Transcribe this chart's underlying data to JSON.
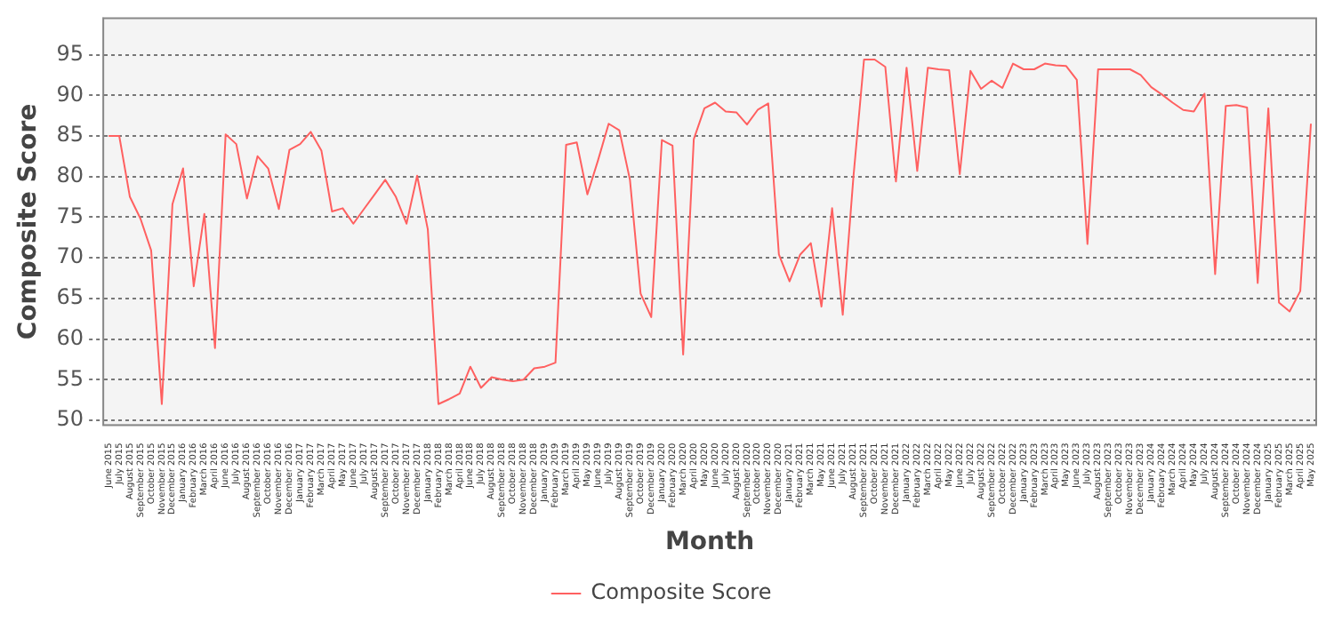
{
  "chart_data": {
    "type": "line",
    "xlabel": "Month",
    "ylabel": "Composite Score",
    "categories": [
      "June 2015",
      "July 2015",
      "August 2015",
      "September 2015",
      "October 2015",
      "November 2015",
      "December 2015",
      "January 2016",
      "February 2016",
      "March 2016",
      "April 2016",
      "June 2016",
      "July 2016",
      "August 2016",
      "September 2016",
      "October 2016",
      "November 2016",
      "December 2016",
      "January 2017",
      "February 2017",
      "March 2017",
      "April 2017",
      "May 2017",
      "June 2017",
      "July 2017",
      "August 2017",
      "September 2017",
      "October 2017",
      "November 2017",
      "December 2017",
      "January 2018",
      "February 2018",
      "March 2018",
      "April 2018",
      "June 2018",
      "July 2018",
      "August 2018",
      "September 2018",
      "October 2018",
      "November 2018",
      "December 2018",
      "January 2019",
      "February 2019",
      "March 2019",
      "April 2019",
      "May 2019",
      "June 2019",
      "July 2019",
      "August 2019",
      "September 2019",
      "October 2019",
      "December 2019",
      "January 2020",
      "February 2020",
      "March 2020",
      "April 2020",
      "May 2020",
      "June 2020",
      "July 2020",
      "August 2020",
      "September 2020",
      "October 2020",
      "November 2020",
      "December 2020",
      "January 2021",
      "February 2021",
      "March 2021",
      "May 2021",
      "June 2021",
      "July 2021",
      "August 2021",
      "September 2021",
      "October 2021",
      "November 2021",
      "December 2021",
      "January 2022",
      "February 2022",
      "March 2022",
      "April 2022",
      "May 2022",
      "June 2022",
      "July 2022",
      "August 2022",
      "September 2022",
      "October 2022",
      "December 2022",
      "January 2023",
      "February 2023",
      "March 2023",
      "April 2023",
      "May 2023",
      "June 2023",
      "July 2023",
      "August 2023",
      "September 2023",
      "October 2023",
      "November 2023",
      "December 2023",
      "January 2024",
      "February 2024",
      "March 2024",
      "April 2024",
      "May 2024",
      "July 2024",
      "August 2024",
      "September 2024",
      "October 2024",
      "November 2024",
      "December 2024",
      "January 2025",
      "February 2025",
      "March 2025",
      "April 2025",
      "May 2025"
    ],
    "series": [
      {
        "name": "Composite Score",
        "color": "#ff6060",
        "values": [
          85,
          85,
          77.5,
          74.8,
          70.9,
          52,
          76.6,
          81,
          66.5,
          75.4,
          58.9,
          85.2,
          84,
          77.3,
          82.5,
          81,
          76,
          83.3,
          84,
          85.5,
          83.2,
          75.7,
          76.1,
          74.2,
          76,
          77.8,
          79.6,
          77.5,
          74.2,
          80.1,
          73.5,
          52,
          52.6,
          53.3,
          56.6,
          54,
          55.3,
          55,
          54.8,
          55,
          56.4,
          56.6,
          57.1,
          83.9,
          84.2,
          77.8,
          82,
          86.5,
          85.7,
          79.6,
          65.6,
          62.7,
          84.5,
          83.8,
          58.1,
          84.6,
          88.4,
          89.1,
          88,
          87.9,
          86.4,
          88.2,
          89,
          70.4,
          67.1,
          70.4,
          71.8,
          64,
          76.1,
          63,
          79.9,
          94.4,
          94.4,
          93.5,
          79.4,
          93.4,
          80.7,
          93.4,
          93.2,
          93.1,
          80.3,
          93,
          90.8,
          91.8,
          90.9,
          93.9,
          93.2,
          93.2,
          93.9,
          93.7,
          93.6,
          91.9,
          71.7,
          93.2,
          93.2,
          93.2,
          93.2,
          92.5,
          91,
          90.1,
          89.1,
          88.2,
          88,
          90.2,
          68,
          88.7,
          88.8,
          88.5,
          66.9,
          88.4,
          64.5,
          63.4,
          65.9,
          86.5
        ]
      }
    ],
    "ylim": [
      49.4,
      99.5
    ],
    "yticks": [
      50,
      55,
      60,
      65,
      70,
      75,
      80,
      85,
      90,
      95
    ],
    "grid": "y",
    "legend": "bottom"
  }
}
